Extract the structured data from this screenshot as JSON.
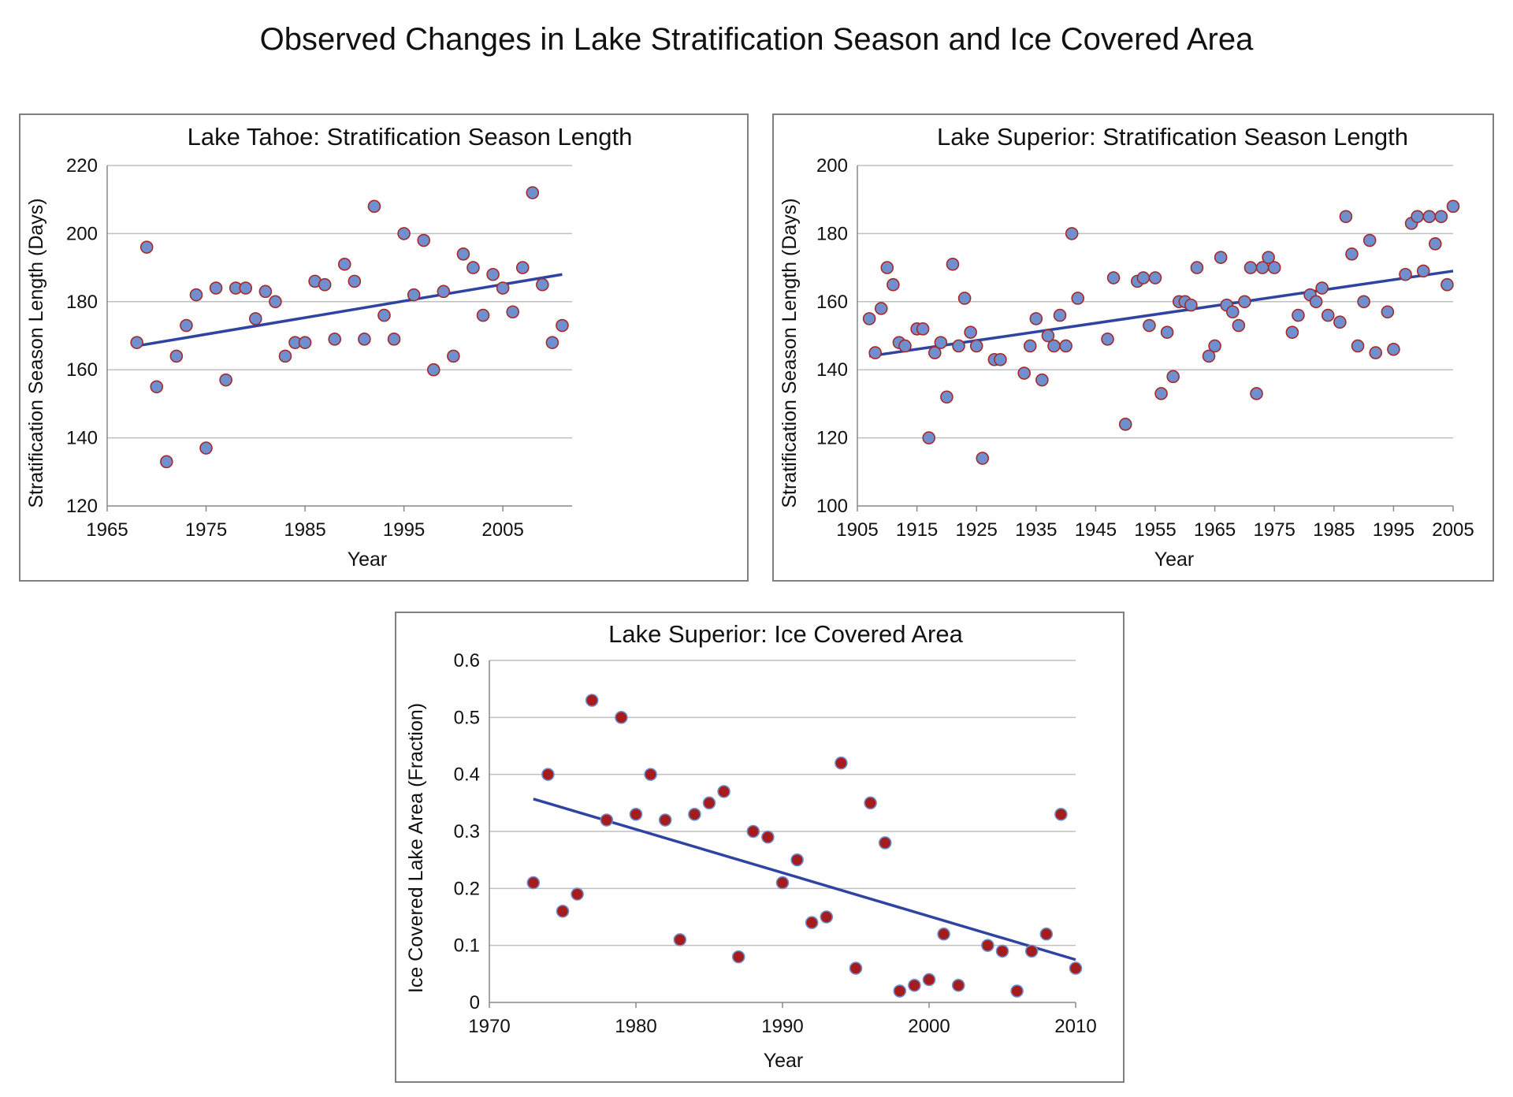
{
  "title": "Observed Changes in Lake Stratification Season and Ice Covered Area",
  "colors": {
    "point_blue": "#6f8fcf",
    "point_red": "#a51c1c",
    "outline_red": "#a52a2a",
    "trend": "#2e44a0",
    "grid": "#bfbfbf"
  },
  "chart_data": [
    {
      "type": "scatter",
      "title": "Lake Tahoe: Stratification Season Length",
      "xlabel": "Year",
      "ylabel": "Stratification Season Length (Days)",
      "xlim": [
        1965,
        2012
      ],
      "ylim": [
        120,
        220
      ],
      "xticks": [
        1965,
        1975,
        1985,
        1995,
        2005
      ],
      "yticks": [
        120,
        140,
        160,
        180,
        200,
        220
      ],
      "grid": true,
      "trendline": [
        [
          1968,
          167
        ],
        [
          2011,
          188
        ]
      ],
      "points": [
        [
          1968,
          168
        ],
        [
          1969,
          196
        ],
        [
          1970,
          155
        ],
        [
          1971,
          133
        ],
        [
          1972,
          164
        ],
        [
          1973,
          173
        ],
        [
          1974,
          182
        ],
        [
          1975,
          137
        ],
        [
          1976,
          184
        ],
        [
          1977,
          157
        ],
        [
          1978,
          184
        ],
        [
          1979,
          184
        ],
        [
          1980,
          175
        ],
        [
          1981,
          183
        ],
        [
          1982,
          180
        ],
        [
          1983,
          164
        ],
        [
          1984,
          168
        ],
        [
          1985,
          168
        ],
        [
          1986,
          186
        ],
        [
          1987,
          185
        ],
        [
          1988,
          169
        ],
        [
          1989,
          191
        ],
        [
          1990,
          186
        ],
        [
          1991,
          169
        ],
        [
          1992,
          208
        ],
        [
          1993,
          176
        ],
        [
          1994,
          169
        ],
        [
          1995,
          200
        ],
        [
          1996,
          182
        ],
        [
          1997,
          198
        ],
        [
          1998,
          160
        ],
        [
          1999,
          183
        ],
        [
          2000,
          164
        ],
        [
          2001,
          194
        ],
        [
          2002,
          190
        ],
        [
          2003,
          176
        ],
        [
          2004,
          188
        ],
        [
          2005,
          184
        ],
        [
          2006,
          177
        ],
        [
          2007,
          190
        ],
        [
          2008,
          212
        ],
        [
          2009,
          185
        ],
        [
          2010,
          168
        ],
        [
          2011,
          173
        ]
      ]
    },
    {
      "type": "scatter",
      "title": "Lake Superior: Stratification Season Length",
      "xlabel": "Year",
      "ylabel": "Stratification Season Length (Days)",
      "xlim": [
        1905,
        2005
      ],
      "ylim": [
        100,
        200
      ],
      "xticks": [
        1905,
        1915,
        1925,
        1935,
        1945,
        1955,
        1965,
        1975,
        1985,
        1995,
        2005
      ],
      "yticks": [
        100,
        120,
        140,
        160,
        180,
        200
      ],
      "grid": true,
      "trendline": [
        [
          1907,
          144
        ],
        [
          2005,
          169
        ]
      ],
      "points": [
        [
          1907,
          155
        ],
        [
          1908,
          145
        ],
        [
          1909,
          158
        ],
        [
          1910,
          170
        ],
        [
          1911,
          165
        ],
        [
          1912,
          148
        ],
        [
          1913,
          147
        ],
        [
          1915,
          152
        ],
        [
          1916,
          152
        ],
        [
          1917,
          120
        ],
        [
          1918,
          145
        ],
        [
          1919,
          148
        ],
        [
          1920,
          132
        ],
        [
          1921,
          171
        ],
        [
          1922,
          147
        ],
        [
          1923,
          161
        ],
        [
          1924,
          151
        ],
        [
          1925,
          147
        ],
        [
          1926,
          114
        ],
        [
          1928,
          143
        ],
        [
          1929,
          143
        ],
        [
          1933,
          139
        ],
        [
          1934,
          147
        ],
        [
          1935,
          155
        ],
        [
          1936,
          137
        ],
        [
          1937,
          150
        ],
        [
          1938,
          147
        ],
        [
          1939,
          156
        ],
        [
          1940,
          147
        ],
        [
          1941,
          180
        ],
        [
          1942,
          161
        ],
        [
          1947,
          149
        ],
        [
          1948,
          167
        ],
        [
          1950,
          124
        ],
        [
          1952,
          166
        ],
        [
          1953,
          167
        ],
        [
          1954,
          153
        ],
        [
          1955,
          167
        ],
        [
          1956,
          133
        ],
        [
          1957,
          151
        ],
        [
          1958,
          138
        ],
        [
          1959,
          160
        ],
        [
          1960,
          160
        ],
        [
          1961,
          159
        ],
        [
          1962,
          170
        ],
        [
          1964,
          144
        ],
        [
          1965,
          147
        ],
        [
          1966,
          173
        ],
        [
          1967,
          159
        ],
        [
          1968,
          157
        ],
        [
          1969,
          153
        ],
        [
          1970,
          160
        ],
        [
          1971,
          170
        ],
        [
          1972,
          133
        ],
        [
          1973,
          170
        ],
        [
          1974,
          173
        ],
        [
          1975,
          170
        ],
        [
          1978,
          151
        ],
        [
          1979,
          156
        ],
        [
          1981,
          162
        ],
        [
          1982,
          160
        ],
        [
          1983,
          164
        ],
        [
          1984,
          156
        ],
        [
          1986,
          154
        ],
        [
          1987,
          185
        ],
        [
          1988,
          174
        ],
        [
          1989,
          147
        ],
        [
          1990,
          160
        ],
        [
          1991,
          178
        ],
        [
          1992,
          145
        ],
        [
          1994,
          157
        ],
        [
          1995,
          146
        ],
        [
          1997,
          168
        ],
        [
          1998,
          183
        ],
        [
          1999,
          185
        ],
        [
          2000,
          169
        ],
        [
          2001,
          185
        ],
        [
          2002,
          177
        ],
        [
          2003,
          185
        ],
        [
          2004,
          165
        ],
        [
          2005,
          188
        ]
      ]
    },
    {
      "type": "scatter",
      "title": "Lake Superior: Ice Covered Area",
      "xlabel": "Year",
      "ylabel": "Ice Covered Lake Area (Fraction)",
      "xlim": [
        1970,
        2010
      ],
      "ylim": [
        0,
        0.6
      ],
      "xticks": [
        1970,
        1980,
        1990,
        2000,
        2010
      ],
      "yticks": [
        0,
        0.1,
        0.2,
        0.3,
        0.4,
        0.5,
        0.6
      ],
      "grid": true,
      "trendline": [
        [
          1973,
          0.357
        ],
        [
          2010,
          0.075
        ]
      ],
      "points": [
        [
          1973,
          0.21
        ],
        [
          1974,
          0.4
        ],
        [
          1975,
          0.16
        ],
        [
          1976,
          0.19
        ],
        [
          1977,
          0.53
        ],
        [
          1978,
          0.32
        ],
        [
          1979,
          0.5
        ],
        [
          1980,
          0.33
        ],
        [
          1981,
          0.4
        ],
        [
          1982,
          0.32
        ],
        [
          1983,
          0.11
        ],
        [
          1984,
          0.33
        ],
        [
          1985,
          0.35
        ],
        [
          1986,
          0.37
        ],
        [
          1987,
          0.08
        ],
        [
          1988,
          0.3
        ],
        [
          1989,
          0.29
        ],
        [
          1990,
          0.21
        ],
        [
          1991,
          0.25
        ],
        [
          1992,
          0.14
        ],
        [
          1993,
          0.15
        ],
        [
          1994,
          0.42
        ],
        [
          1995,
          0.06
        ],
        [
          1996,
          0.35
        ],
        [
          1997,
          0.28
        ],
        [
          1998,
          0.02
        ],
        [
          1999,
          0.03
        ],
        [
          2000,
          0.04
        ],
        [
          2001,
          0.12
        ],
        [
          2002,
          0.03
        ],
        [
          2004,
          0.1
        ],
        [
          2005,
          0.09
        ],
        [
          2006,
          0.02
        ],
        [
          2007,
          0.09
        ],
        [
          2008,
          0.12
        ],
        [
          2009,
          0.33
        ],
        [
          2010,
          0.06
        ]
      ]
    }
  ]
}
